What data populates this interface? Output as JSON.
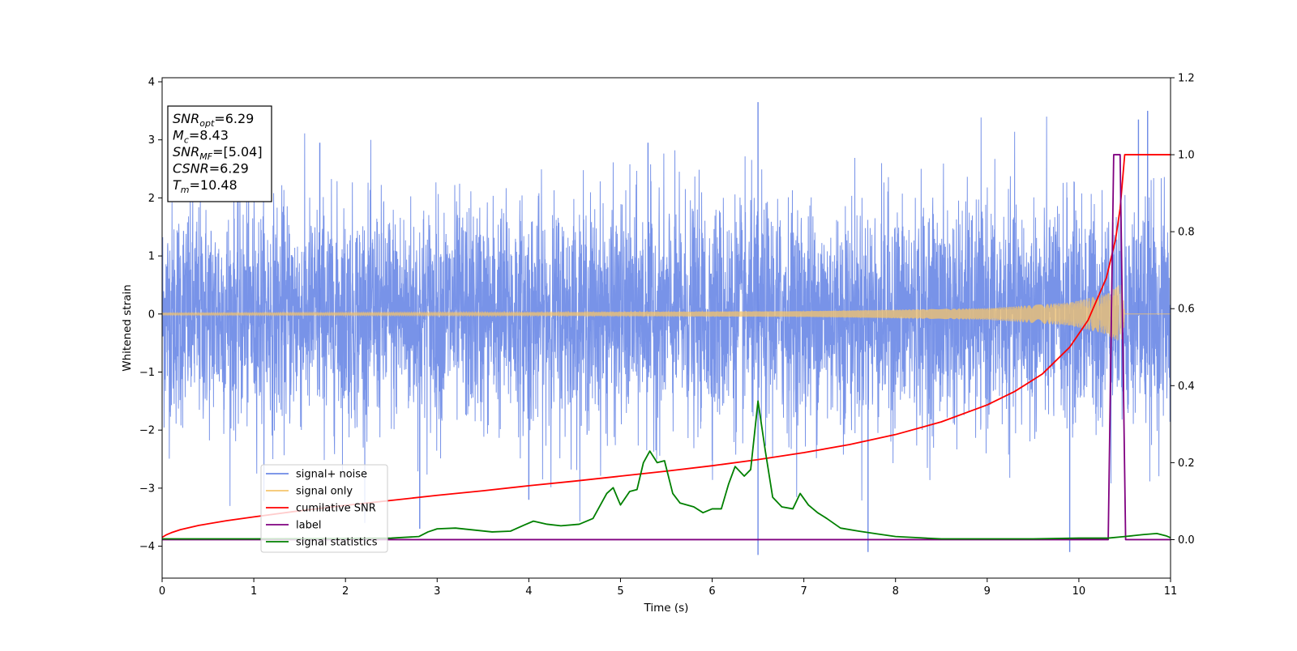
{
  "chart_data": {
    "type": "line",
    "xlabel": "Time (s)",
    "ylabel": "Whitened strain",
    "xlim": [
      0,
      11
    ],
    "ylim": [
      -4.55,
      4.07
    ],
    "y2lim": [
      -0.1,
      1.2
    ],
    "x_ticks": [
      "0",
      "1",
      "2",
      "3",
      "4",
      "5",
      "6",
      "7",
      "8",
      "9",
      "10",
      "11"
    ],
    "x_tick_values": [
      0,
      1,
      2,
      3,
      4,
      5,
      6,
      7,
      8,
      9,
      10,
      11
    ],
    "y_ticks": [
      "4",
      "3",
      "2",
      "1",
      "0",
      "−1",
      "−2",
      "−3",
      "−4"
    ],
    "y_tick_values": [
      4,
      3,
      2,
      1,
      0,
      -1,
      -2,
      -3,
      -4
    ],
    "y2_ticks": [
      "1.2",
      "1.0",
      "0.8",
      "0.6",
      "0.4",
      "0.2",
      "0.0"
    ],
    "y2_tick_values": [
      1.2,
      1.0,
      0.8,
      0.6,
      0.4,
      0.2,
      0.0
    ],
    "legend_position": "lower-left",
    "legend": [
      {
        "name": "signal+ noise",
        "color": "#6d8ae6"
      },
      {
        "name": "signal only",
        "color": "#f5c46b"
      },
      {
        "name": "cumilative SNR",
        "color": "#ff0000"
      },
      {
        "name": "label",
        "color": "#800080"
      },
      {
        "name": "signal statistics",
        "color": "#008000"
      }
    ],
    "annotation": {
      "lines": [
        {
          "name": "SNR",
          "sub": "opt",
          "value": "=6.29"
        },
        {
          "name": "M",
          "sub": "c",
          "value": "=8.43"
        },
        {
          "name": "SNR",
          "sub": "MF",
          "value": "=[5.04]"
        },
        {
          "name": "CSNR",
          "sub": "",
          "value": "=6.29"
        },
        {
          "name": "T",
          "sub": "m",
          "value": "=10.48"
        }
      ]
    },
    "series": [
      {
        "name": "signal+ noise",
        "axis": "left",
        "color": "#6d8ae6",
        "description_kind": "gaussian_noise",
        "x_range": [
          0,
          11
        ],
        "std": 1.0,
        "spikes": [
          [
            1.72,
            2.95
          ],
          [
            2.81,
            -3.7
          ],
          [
            4.0,
            -3.2
          ],
          [
            5.3,
            2.95
          ],
          [
            6.5,
            3.65
          ],
          [
            6.5,
            -4.15
          ],
          [
            7.7,
            -4.1
          ],
          [
            9.9,
            -4.1
          ],
          [
            10.75,
            3.5
          ],
          [
            10.65,
            3.35
          ]
        ]
      },
      {
        "name": "signal only",
        "axis": "left",
        "color": "#f5c46b",
        "description_kind": "chirp",
        "x_range": [
          0,
          10.5
        ],
        "envelope": [
          [
            0,
            0.02
          ],
          [
            4,
            0.03
          ],
          [
            7,
            0.05
          ],
          [
            9,
            0.1
          ],
          [
            9.9,
            0.2
          ],
          [
            10.3,
            0.35
          ],
          [
            10.48,
            0.55
          ],
          [
            10.5,
            0.0
          ]
        ]
      },
      {
        "name": "cumilative SNR",
        "axis": "right",
        "color": "#ff0000",
        "x": [
          0,
          0.05,
          0.1,
          0.2,
          0.4,
          0.7,
          1,
          1.5,
          2,
          2.5,
          3,
          3.5,
          4,
          4.5,
          5,
          5.5,
          6,
          6.5,
          7,
          7.5,
          8,
          8.5,
          9,
          9.3,
          9.6,
          9.9,
          10.1,
          10.3,
          10.4,
          10.45,
          10.5,
          11
        ],
        "y": [
          0.006,
          0.013,
          0.018,
          0.026,
          0.037,
          0.049,
          0.059,
          0.075,
          0.089,
          0.102,
          0.115,
          0.127,
          0.14,
          0.152,
          0.165,
          0.178,
          0.192,
          0.208,
          0.226,
          0.247,
          0.273,
          0.306,
          0.35,
          0.385,
          0.43,
          0.5,
          0.57,
          0.68,
          0.78,
          0.86,
          1.0,
          1.0
        ]
      },
      {
        "name": "label",
        "axis": "right",
        "color": "#800080",
        "x": [
          0,
          10.32,
          10.38,
          10.45,
          10.51,
          11
        ],
        "y": [
          0.0,
          0.0,
          1.0,
          1.0,
          0.0,
          0.0
        ]
      },
      {
        "name": "signal statistics",
        "axis": "right",
        "color": "#008000",
        "x": [
          0,
          1,
          2,
          2.5,
          2.8,
          2.9,
          3.0,
          3.2,
          3.4,
          3.6,
          3.8,
          3.95,
          4.05,
          4.2,
          4.35,
          4.55,
          4.7,
          4.85,
          4.92,
          5.0,
          5.1,
          5.18,
          5.25,
          5.32,
          5.4,
          5.48,
          5.57,
          5.65,
          5.8,
          5.9,
          6.0,
          6.1,
          6.18,
          6.25,
          6.35,
          6.42,
          6.5,
          6.58,
          6.66,
          6.76,
          6.88,
          6.96,
          7.05,
          7.15,
          7.25,
          7.4,
          7.6,
          7.8,
          8.0,
          8.5,
          9.0,
          9.5,
          10.0,
          10.32,
          10.5,
          10.7,
          10.85,
          10.95,
          11
        ],
        "y": [
          0.002,
          0.002,
          0.003,
          0.004,
          0.008,
          0.02,
          0.028,
          0.03,
          0.025,
          0.02,
          0.022,
          0.038,
          0.048,
          0.04,
          0.036,
          0.04,
          0.055,
          0.12,
          0.135,
          0.09,
          0.125,
          0.13,
          0.2,
          0.23,
          0.2,
          0.205,
          0.12,
          0.095,
          0.085,
          0.07,
          0.08,
          0.08,
          0.145,
          0.19,
          0.165,
          0.182,
          0.36,
          0.23,
          0.11,
          0.085,
          0.08,
          0.12,
          0.09,
          0.07,
          0.055,
          0.03,
          0.022,
          0.015,
          0.008,
          0.002,
          0.002,
          0.002,
          0.004,
          0.004,
          0.008,
          0.013,
          0.016,
          0.01,
          0.005
        ]
      }
    ]
  }
}
